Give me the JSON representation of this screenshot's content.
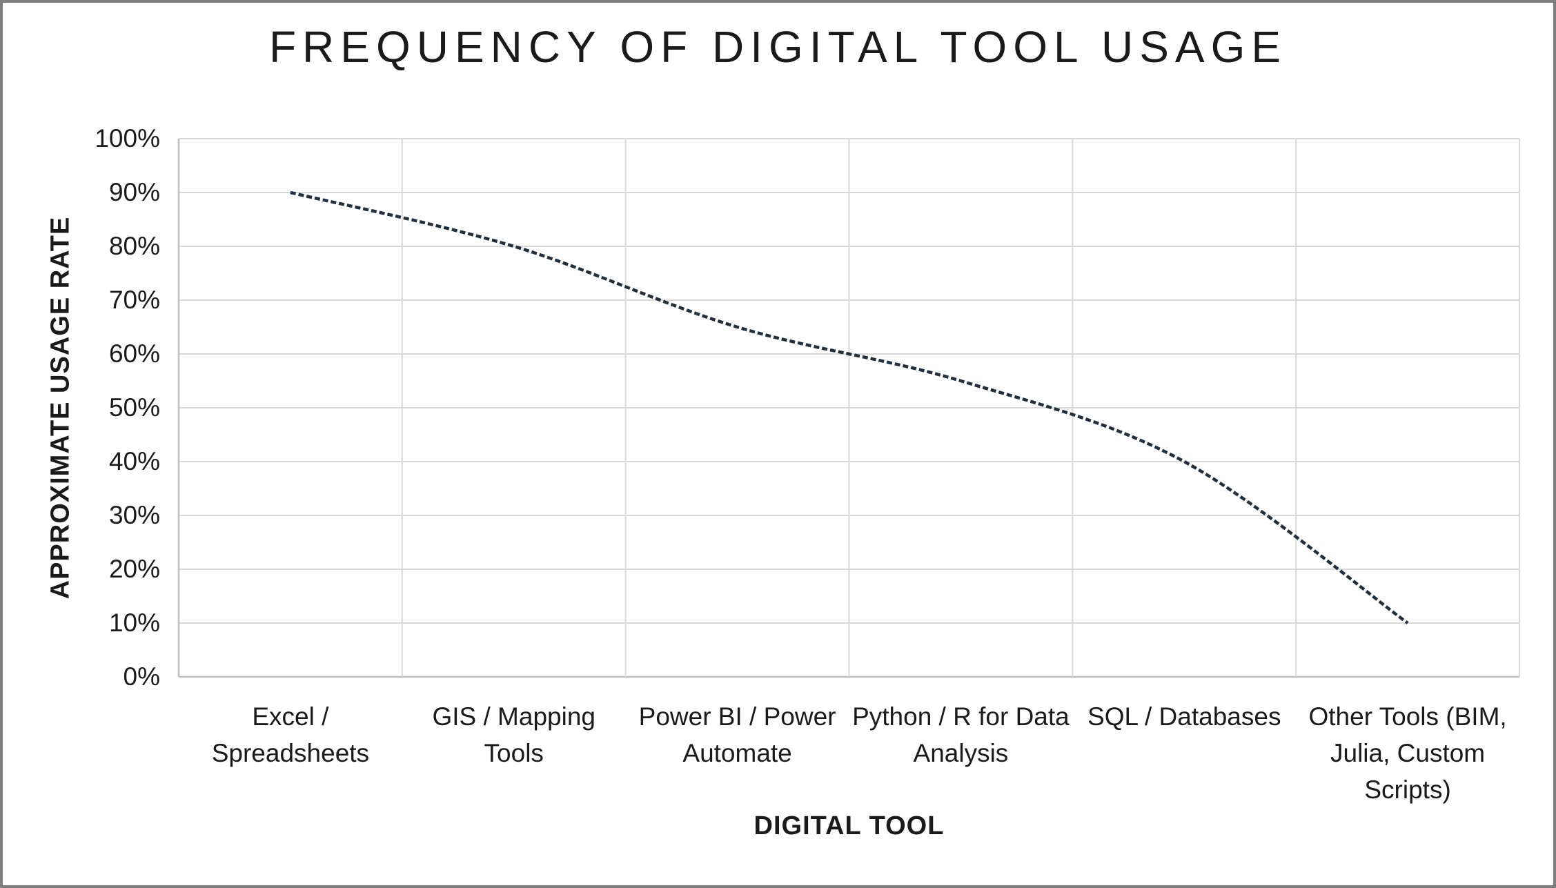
{
  "chart_data": {
    "type": "line",
    "title": "FREQUENCY OF DIGITAL TOOL USAGE",
    "xlabel": "DIGITAL TOOL",
    "ylabel": "APPROXIMATE USAGE RATE",
    "categories": [
      "Excel / Spreadsheets",
      "GIS / Mapping Tools",
      "Power BI / Power Automate",
      "Python / R for Data Analysis",
      "SQL / Databases",
      "Other Tools (BIM, Julia, Custom Scripts)"
    ],
    "values": [
      90,
      80,
      65,
      55,
      40,
      10
    ],
    "value_unit": "%",
    "ylim": [
      0,
      100
    ],
    "ytick_step": 10,
    "ytick_labels": [
      "0%",
      "10%",
      "20%",
      "30%",
      "40%",
      "50%",
      "60%",
      "70%",
      "80%",
      "90%",
      "100%"
    ],
    "xtick_label_lines": [
      [
        "Excel /",
        "Spreadsheets"
      ],
      [
        "GIS / Mapping",
        "Tools"
      ],
      [
        "Power BI / Power",
        "Automate"
      ],
      [
        "Python / R for Data",
        "Analysis"
      ],
      [
        "SQL / Databases"
      ],
      [
        "Other Tools (BIM,",
        "Julia, Custom",
        "Scripts)"
      ]
    ],
    "grid": true,
    "legend": false,
    "line_style": "dashed",
    "smoothed": true
  },
  "colors": {
    "line": "#20303f",
    "gridline": "#d9d9d9",
    "axis_line": "#bfbfbf",
    "text": "#1a1a1a",
    "frame_border": "#7f7f7f",
    "background": "#ffffff"
  }
}
